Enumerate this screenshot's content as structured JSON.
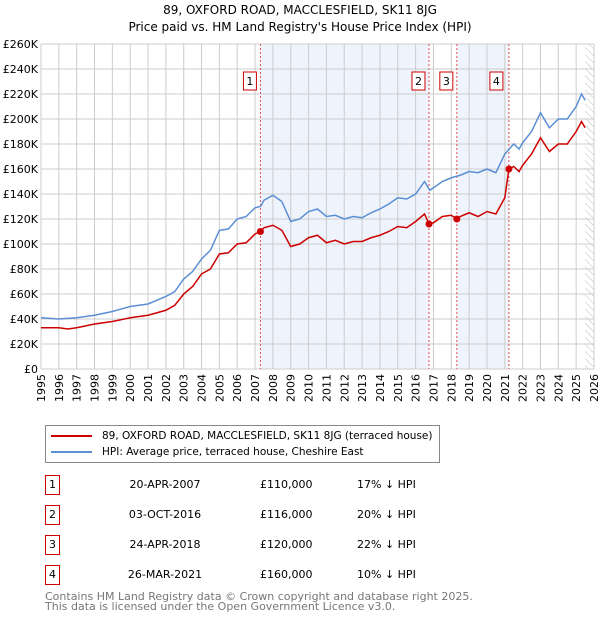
{
  "title": "89, OXFORD ROAD, MACCLESFIELD, SK11 8JG",
  "subtitle": "Price paid vs. HM Land Registry's House Price Index (HPI)",
  "chart_data": {
    "type": "line",
    "title": "89, OXFORD ROAD, MACCLESFIELD, SK11 8JG",
    "subtitle": "Price paid vs. HM Land Registry's House Price Index (HPI)",
    "xlim": [
      1995,
      2026
    ],
    "ylim": [
      0,
      260000
    ],
    "x_ticks": [
      "1995",
      "1996",
      "1997",
      "1998",
      "1999",
      "2000",
      "2001",
      "2002",
      "2003",
      "2004",
      "2005",
      "2006",
      "2007",
      "2008",
      "2009",
      "2010",
      "2011",
      "2012",
      "2013",
      "2014",
      "2015",
      "2016",
      "2017",
      "2018",
      "2019",
      "2020",
      "2021",
      "2022",
      "2023",
      "2024",
      "2025",
      "2026"
    ],
    "y_ticks": [
      {
        "v": 0,
        "l": "£0"
      },
      {
        "v": 20000,
        "l": "£20K"
      },
      {
        "v": 40000,
        "l": "£40K"
      },
      {
        "v": 60000,
        "l": "£60K"
      },
      {
        "v": 80000,
        "l": "£80K"
      },
      {
        "v": 100000,
        "l": "£100K"
      },
      {
        "v": 120000,
        "l": "£120K"
      },
      {
        "v": 140000,
        "l": "£140K"
      },
      {
        "v": 160000,
        "l": "£160K"
      },
      {
        "v": 180000,
        "l": "£180K"
      },
      {
        "v": 200000,
        "l": "£200K"
      },
      {
        "v": 220000,
        "l": "£220K"
      },
      {
        "v": 240000,
        "l": "£240K"
      },
      {
        "v": 260000,
        "l": "£260K"
      }
    ],
    "grid": true,
    "shaded_periods": [
      [
        2007.3,
        2016.75
      ],
      [
        2018.3,
        2021.23
      ]
    ],
    "forecast_hatch_from": 2025.5,
    "series": [
      {
        "name": "89, OXFORD ROAD, MACCLESFIELD, SK11 8JG (terraced house)",
        "color": "#cc0000",
        "points": [
          [
            1995,
            33
          ],
          [
            1996,
            33
          ],
          [
            1996.5,
            32
          ],
          [
            1997,
            33
          ],
          [
            1998,
            36
          ],
          [
            1999,
            38
          ],
          [
            2000,
            41
          ],
          [
            2001,
            43
          ],
          [
            2002,
            47
          ],
          [
            2002.5,
            51
          ],
          [
            2003,
            60
          ],
          [
            2003.5,
            66
          ],
          [
            2004,
            76
          ],
          [
            2004.5,
            80
          ],
          [
            2005,
            92
          ],
          [
            2005.5,
            93
          ],
          [
            2006,
            100
          ],
          [
            2006.5,
            101
          ],
          [
            2007,
            108
          ],
          [
            2007.3,
            110
          ],
          [
            2007.5,
            113
          ],
          [
            2008,
            115
          ],
          [
            2008.5,
            111
          ],
          [
            2009,
            98
          ],
          [
            2009.5,
            100
          ],
          [
            2010,
            105
          ],
          [
            2010.5,
            107
          ],
          [
            2011,
            101
          ],
          [
            2011.5,
            103
          ],
          [
            2012,
            100
          ],
          [
            2012.5,
            102
          ],
          [
            2013,
            102
          ],
          [
            2013.5,
            105
          ],
          [
            2014,
            107
          ],
          [
            2014.5,
            110
          ],
          [
            2015,
            114
          ],
          [
            2015.5,
            113
          ],
          [
            2016,
            118
          ],
          [
            2016.5,
            124
          ],
          [
            2016.75,
            116
          ],
          [
            2017,
            117
          ],
          [
            2017.5,
            122
          ],
          [
            2018,
            123
          ],
          [
            2018.3,
            120
          ],
          [
            2018.5,
            122
          ],
          [
            2019,
            125
          ],
          [
            2019.5,
            122
          ],
          [
            2020,
            126
          ],
          [
            2020.5,
            124
          ],
          [
            2021,
            137
          ],
          [
            2021.23,
            160
          ],
          [
            2021.5,
            162
          ],
          [
            2021.8,
            158
          ],
          [
            2022,
            163
          ],
          [
            2022.5,
            172
          ],
          [
            2023,
            185
          ],
          [
            2023.5,
            174
          ],
          [
            2024,
            180
          ],
          [
            2024.5,
            180
          ],
          [
            2025,
            190
          ],
          [
            2025.3,
            198
          ],
          [
            2025.5,
            193
          ]
        ]
      },
      {
        "name": "HPI: Average price, terraced house, Cheshire East",
        "color": "#5b8fd4",
        "points": [
          [
            1995,
            41
          ],
          [
            1996,
            40
          ],
          [
            1997,
            41
          ],
          [
            1998,
            43
          ],
          [
            1999,
            46
          ],
          [
            2000,
            50
          ],
          [
            2001,
            52
          ],
          [
            2002,
            58
          ],
          [
            2002.5,
            62
          ],
          [
            2003,
            72
          ],
          [
            2003.5,
            78
          ],
          [
            2004,
            88
          ],
          [
            2004.5,
            95
          ],
          [
            2005,
            111
          ],
          [
            2005.5,
            112
          ],
          [
            2006,
            120
          ],
          [
            2006.5,
            122
          ],
          [
            2007,
            129
          ],
          [
            2007.3,
            130
          ],
          [
            2007.5,
            135
          ],
          [
            2008,
            139
          ],
          [
            2008.5,
            134
          ],
          [
            2009,
            118
          ],
          [
            2009.5,
            120
          ],
          [
            2010,
            126
          ],
          [
            2010.5,
            128
          ],
          [
            2011,
            122
          ],
          [
            2011.5,
            123
          ],
          [
            2012,
            120
          ],
          [
            2012.5,
            122
          ],
          [
            2013,
            121
          ],
          [
            2013.5,
            125
          ],
          [
            2014,
            128
          ],
          [
            2014.5,
            132
          ],
          [
            2015,
            137
          ],
          [
            2015.5,
            136
          ],
          [
            2016,
            140
          ],
          [
            2016.5,
            150
          ],
          [
            2016.8,
            143
          ],
          [
            2017,
            145
          ],
          [
            2017.5,
            150
          ],
          [
            2018,
            153
          ],
          [
            2018.5,
            155
          ],
          [
            2019,
            158
          ],
          [
            2019.5,
            157
          ],
          [
            2020,
            160
          ],
          [
            2020.5,
            157
          ],
          [
            2021,
            172
          ],
          [
            2021.5,
            180
          ],
          [
            2021.8,
            176
          ],
          [
            2022,
            181
          ],
          [
            2022.5,
            190
          ],
          [
            2023,
            205
          ],
          [
            2023.5,
            193
          ],
          [
            2024,
            200
          ],
          [
            2024.5,
            200
          ],
          [
            2025,
            210
          ],
          [
            2025.3,
            220
          ],
          [
            2025.5,
            215
          ]
        ]
      }
    ],
    "sales": [
      {
        "id": "1",
        "x": 2007.3,
        "price": 110000,
        "date": "20-APR-2007",
        "price_label": "£110,000",
        "pct": "17% ↓ HPI"
      },
      {
        "id": "2",
        "x": 2016.75,
        "price": 116000,
        "date": "03-OCT-2016",
        "price_label": "£116,000",
        "pct": "20% ↓ HPI"
      },
      {
        "id": "3",
        "x": 2018.31,
        "price": 120000,
        "date": "24-APR-2018",
        "price_label": "£120,000",
        "pct": "22% ↓ HPI"
      },
      {
        "id": "4",
        "x": 2021.23,
        "price": 160000,
        "date": "26-MAR-2021",
        "price_label": "£160,000",
        "pct": "10% ↓ HPI"
      }
    ]
  },
  "legend": {
    "property": "89, OXFORD ROAD, MACCLESFIELD, SK11 8JG (terraced house)",
    "hpi": "HPI: Average price, terraced house, Cheshire East"
  },
  "footer": {
    "line1": "Contains HM Land Registry data © Crown copyright and database right 2025.",
    "line2": "This data is licensed under the Open Government Licence v3.0."
  }
}
